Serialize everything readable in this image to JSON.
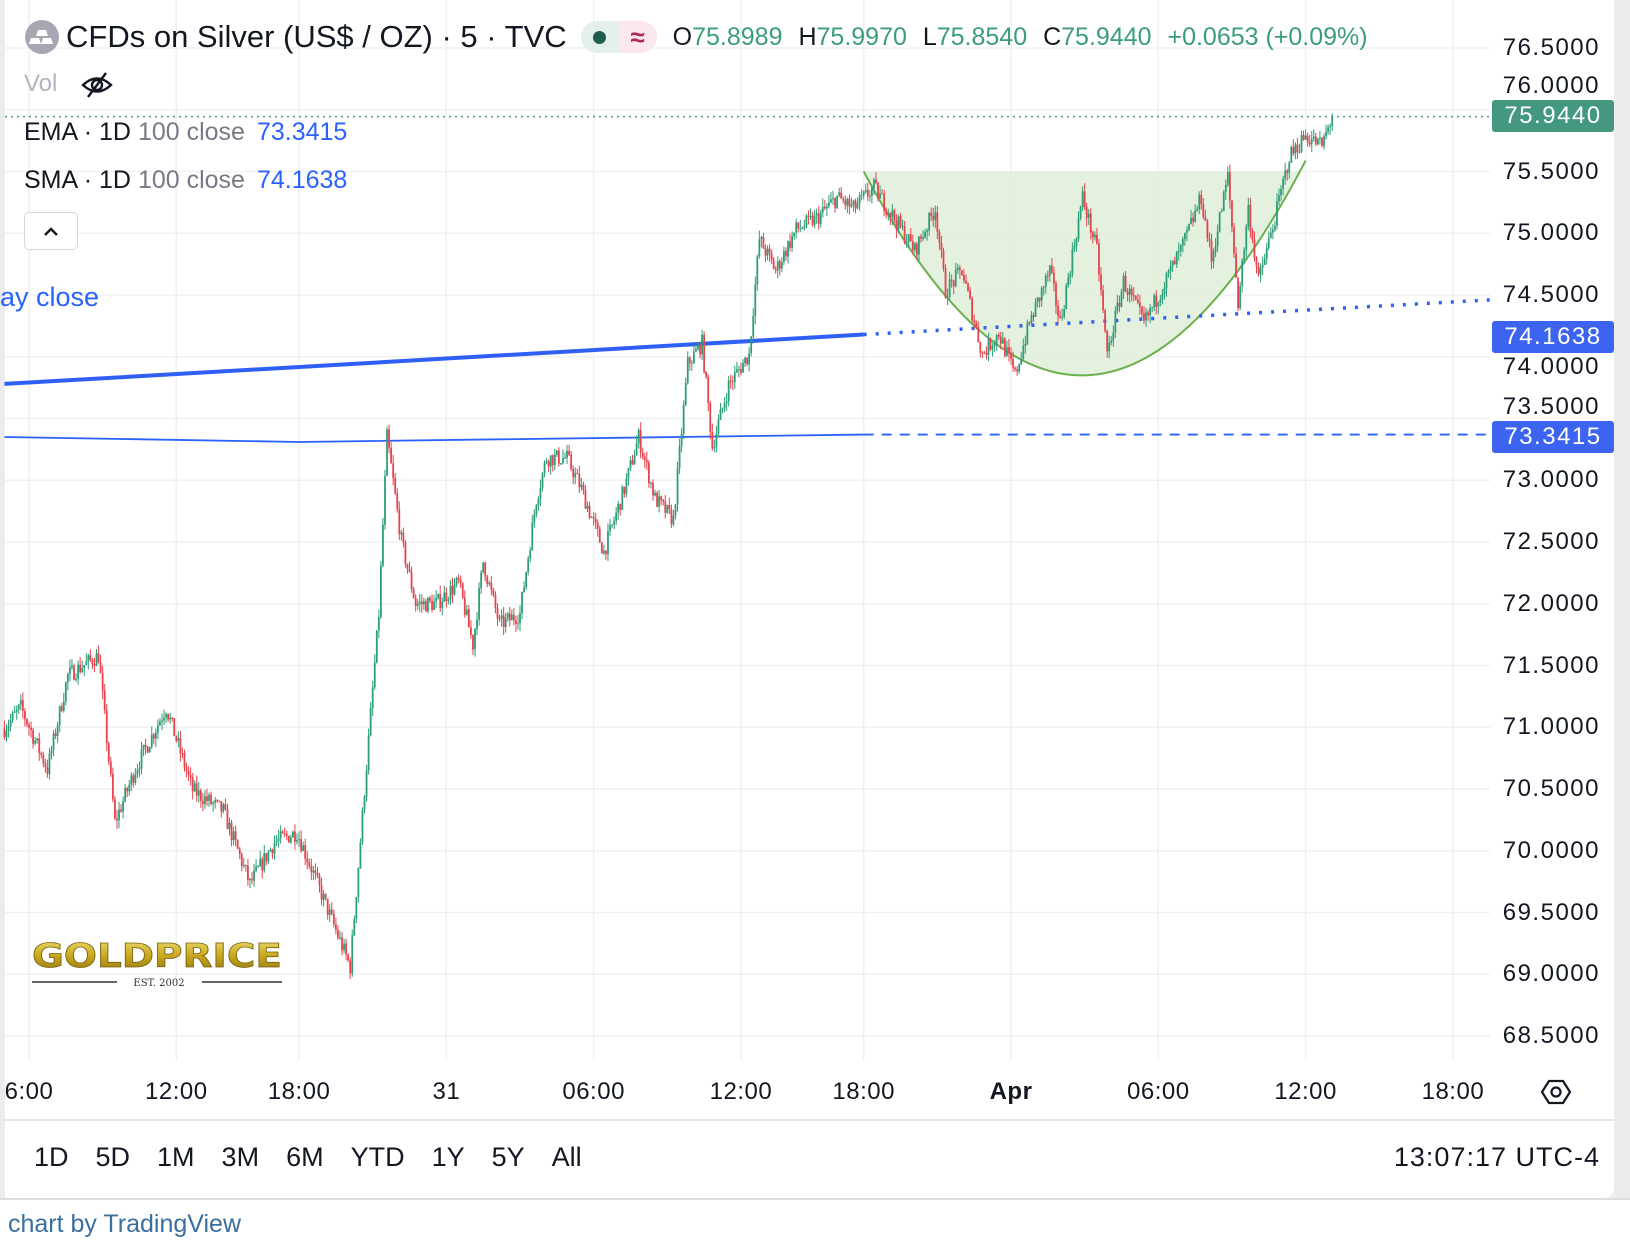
{
  "header": {
    "title": "CFDs on Silver (US$ / OZ) · 5 · TVC",
    "symbol_icon": "silver-bars-icon",
    "market_status_icon": "market-open-dot-icon",
    "delay_icon": "approx-icon",
    "delay_glyph": "≈",
    "ohlc": {
      "o_label": "O",
      "o": "75.8989",
      "h_label": "H",
      "h": "75.9970",
      "l_label": "L",
      "l": "75.8540",
      "c_label": "C",
      "c": "75.9440",
      "change": "+0.0653 (+0.09%)"
    },
    "vol_label": "Vol",
    "vol_icon": "eye-off-icon"
  },
  "indicators": [
    {
      "name": "EMA · 1D",
      "params": "100 close",
      "value": "73.3415"
    },
    {
      "name": "SMA · 1D",
      "params": "100 close",
      "value": "74.1638"
    }
  ],
  "collapse_icon": "chevron-up-icon",
  "sma_tag": "ay close",
  "logo": {
    "text": "GOLDPRICE",
    "sub": "EST. 2002"
  },
  "colors": {
    "up": "#2e9e78",
    "down": "#e5444d",
    "accent": "#2962ff",
    "last_price": "#43987f",
    "cup_fill": "#e1efdc",
    "cup_line": "#6ab04c"
  },
  "price_badges": {
    "last": "75.9440",
    "sma": "74.1638",
    "ema": "73.3415"
  },
  "range_buttons": [
    "1D",
    "5D",
    "1M",
    "3M",
    "6M",
    "YTD",
    "1Y",
    "5Y",
    "All"
  ],
  "clock": "13:07:17 UTC-4",
  "settings_icon": "gear-icon",
  "footer": "chart by TradingView",
  "chart_data": {
    "type": "candlestick",
    "interval": "5",
    "ylim": [
      68.5,
      76.5
    ],
    "y_ticks": [
      "76.5000",
      "76.0000",
      "75.5000",
      "75.0000",
      "74.5000",
      "74.0000",
      "73.5000",
      "73.0000",
      "72.5000",
      "72.0000",
      "71.5000",
      "71.0000",
      "70.5000",
      "70.0000",
      "69.5000",
      "69.0000",
      "68.5000"
    ],
    "x_ticks": [
      {
        "label": "6:00",
        "t": "03-30 06:00"
      },
      {
        "label": "12:00",
        "t": "03-30 12:00"
      },
      {
        "label": "18:00",
        "t": "03-30 18:00"
      },
      {
        "label": "31",
        "t": "03-31 00:00"
      },
      {
        "label": "06:00",
        "t": "03-31 06:00"
      },
      {
        "label": "12:00",
        "t": "03-31 12:00"
      },
      {
        "label": "18:00",
        "t": "03-31 18:00"
      },
      {
        "label": "Apr",
        "t": "04-01 00:00",
        "bold": true
      },
      {
        "label": "06:00",
        "t": "04-01 06:00"
      },
      {
        "label": "12:00",
        "t": "04-01 12:00"
      },
      {
        "label": "18:00",
        "t": "04-01 18:00"
      }
    ],
    "grid": true,
    "price_path": [
      [
        "03-30 05:00",
        70.99
      ],
      [
        "03-30 05:40",
        71.16
      ],
      [
        "03-30 06:45",
        70.66
      ],
      [
        "03-30 07:35",
        71.42
      ],
      [
        "03-30 08:50",
        71.58
      ],
      [
        "03-30 09:30",
        70.23
      ],
      [
        "03-30 10:20",
        70.66
      ],
      [
        "03-30 11:35",
        71.16
      ],
      [
        "03-30 12:40",
        70.49
      ],
      [
        "03-30 13:55",
        70.32
      ],
      [
        "03-30 15:00",
        69.73
      ],
      [
        "03-30 16:00",
        70.07
      ],
      [
        "03-30 16:55",
        70.15
      ],
      [
        "03-30 18:55",
        69.65
      ],
      [
        "03-30 20:05",
        69.06
      ],
      [
        "03-30 20:40",
        70.49
      ],
      [
        "03-30 21:15",
        71.92
      ],
      [
        "03-30 21:35",
        73.35
      ],
      [
        "03-30 22:10",
        72.51
      ],
      [
        "03-30 22:45",
        72.0
      ],
      [
        "03-30 23:35",
        72.0
      ],
      [
        "03-31 00:30",
        72.17
      ],
      [
        "03-31 01:05",
        71.67
      ],
      [
        "03-31 01:30",
        72.34
      ],
      [
        "03-31 02:10",
        71.83
      ],
      [
        "03-31 03:00",
        71.92
      ],
      [
        "03-31 03:40",
        72.85
      ],
      [
        "03-31 04:05",
        73.18
      ],
      [
        "03-31 04:55",
        73.18
      ],
      [
        "03-31 05:30",
        72.93
      ],
      [
        "03-31 06:25",
        72.42
      ],
      [
        "03-31 07:15",
        72.93
      ],
      [
        "03-31 07:50",
        73.35
      ],
      [
        "03-31 08:30",
        72.85
      ],
      [
        "03-31 09:15",
        72.68
      ],
      [
        "03-31 09:50",
        73.94
      ],
      [
        "03-31 10:25",
        74.11
      ],
      [
        "03-31 10:50",
        73.27
      ],
      [
        "03-31 11:30",
        73.77
      ],
      [
        "03-31 12:20",
        74.02
      ],
      [
        "03-31 12:45",
        74.95
      ],
      [
        "03-31 13:25",
        74.7
      ],
      [
        "03-31 14:15",
        75.03
      ],
      [
        "03-31 15:05",
        75.12
      ],
      [
        "03-31 15:55",
        75.29
      ],
      [
        "03-31 16:35",
        75.2
      ],
      [
        "03-31 18:25",
        75.37
      ],
      [
        "03-31 19:15",
        75.12
      ],
      [
        "03-31 20:05",
        74.86
      ],
      [
        "03-31 20:55",
        75.2
      ],
      [
        "03-31 21:20",
        74.53
      ],
      [
        "03-31 22:00",
        74.7
      ],
      [
        "03-31 22:50",
        74.02
      ],
      [
        "03-31 23:30",
        74.19
      ],
      [
        "04-01 00:10",
        73.85
      ],
      [
        "04-01 00:45",
        74.27
      ],
      [
        "04-01 01:35",
        74.7
      ],
      [
        "04-01 02:00",
        74.27
      ],
      [
        "04-01 02:55",
        75.29
      ],
      [
        "04-01 03:30",
        74.86
      ],
      [
        "04-01 03:55",
        74.02
      ],
      [
        "04-01 04:35",
        74.61
      ],
      [
        "04-01 05:25",
        74.27
      ],
      [
        "04-01 06:05",
        74.53
      ],
      [
        "04-01 06:55",
        74.86
      ],
      [
        "04-01 07:45",
        75.29
      ],
      [
        "04-01 08:10",
        74.78
      ],
      [
        "04-01 08:50",
        75.46
      ],
      [
        "04-01 09:15",
        74.44
      ],
      [
        "04-01 09:40",
        75.2
      ],
      [
        "04-01 10:05",
        74.61
      ],
      [
        "04-01 10:45",
        75.12
      ],
      [
        "04-01 11:20",
        75.62
      ],
      [
        "04-01 12:00",
        75.79
      ],
      [
        "04-01 12:40",
        75.71
      ],
      [
        "04-01 13:05",
        75.944
      ]
    ],
    "sma_line": {
      "solid": [
        [
          "03-30 05:00",
          73.78
        ],
        [
          "03-31 18:00",
          74.18
        ]
      ],
      "dotted": [
        [
          "03-31 18:00",
          74.18
        ],
        [
          "04-01 19:30",
          74.46
        ]
      ]
    },
    "ema_line": {
      "solid": [
        [
          "03-30 05:00",
          73.35
        ],
        [
          "03-30 18:00",
          73.31
        ],
        [
          "03-31 18:00",
          73.37
        ]
      ],
      "dashed": [
        [
          "03-31 17:00",
          73.37
        ],
        [
          "04-01 19:30",
          73.37
        ]
      ]
    },
    "last_price": 75.944,
    "cup_pattern": {
      "rim": 75.5,
      "start": [
        "03-31 18:00",
        75.5
      ],
      "bottom": [
        "04-01 03:05",
        73.85
      ],
      "end": [
        "04-01 12:05",
        75.62
      ]
    }
  }
}
